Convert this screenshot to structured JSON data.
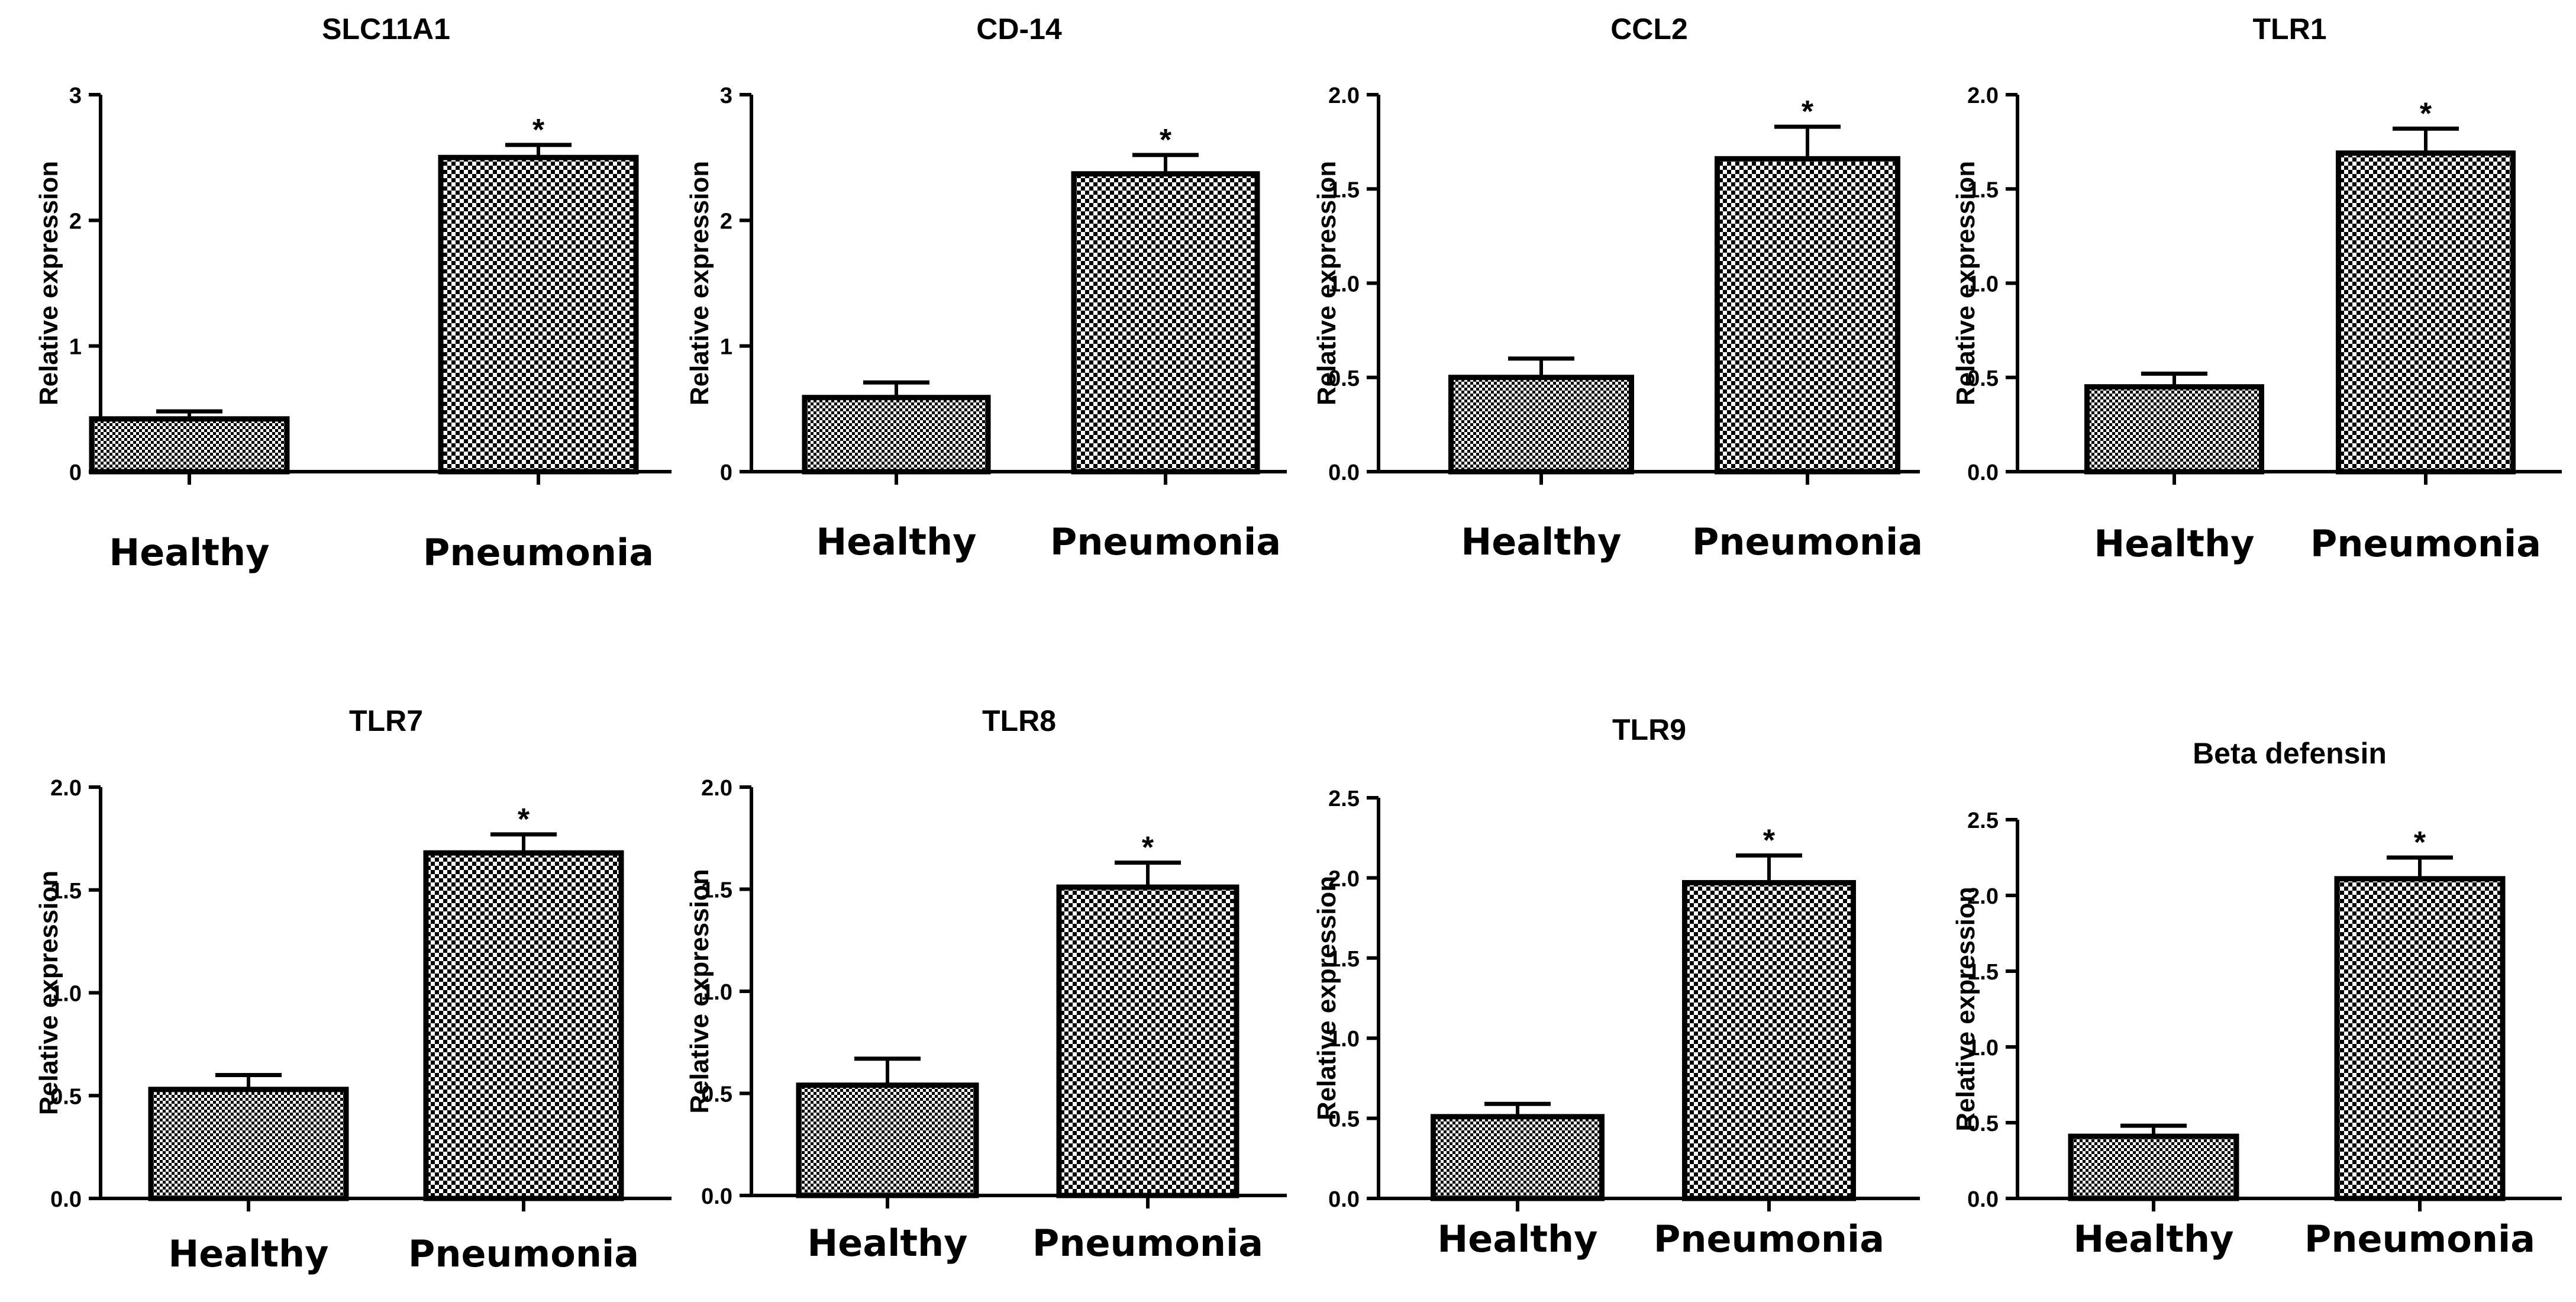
{
  "chart_data": [
    {
      "type": "bar",
      "title": "SLC11A1",
      "ylabel": "Relative expression",
      "xlabel": "",
      "categories": [
        "Healthy",
        "Pneumonia"
      ],
      "values": [
        0.42,
        2.5
      ],
      "errors": [
        0.06,
        0.1
      ],
      "ylim": [
        0,
        3
      ],
      "yticks": [
        "0",
        "1",
        "2",
        "3"
      ],
      "significance": [
        "",
        "*"
      ]
    },
    {
      "type": "bar",
      "title": "CD-14",
      "ylabel": "Relative expression",
      "xlabel": "",
      "categories": [
        "Healthy",
        "Pneumonia"
      ],
      "values": [
        0.59,
        2.37
      ],
      "errors": [
        0.12,
        0.15
      ],
      "ylim": [
        0,
        3
      ],
      "yticks": [
        "0",
        "1",
        "2",
        "3"
      ],
      "significance": [
        "",
        "*"
      ]
    },
    {
      "type": "bar",
      "title": "CCL2",
      "ylabel": "Relative expression",
      "xlabel": "",
      "categories": [
        "Healthy",
        "Pneumonia"
      ],
      "values": [
        0.5,
        1.66
      ],
      "errors": [
        0.1,
        0.17
      ],
      "ylim": [
        0,
        2
      ],
      "yticks": [
        "0.0",
        "0.5",
        "1.0",
        "1.5",
        "2.0"
      ],
      "significance": [
        "",
        "*"
      ]
    },
    {
      "type": "bar",
      "title": "TLR1",
      "ylabel": "Relative expression",
      "xlabel": "",
      "categories": [
        "Healthy",
        "Pneumonia"
      ],
      "values": [
        0.45,
        1.69
      ],
      "errors": [
        0.07,
        0.13
      ],
      "ylim": [
        0,
        2
      ],
      "yticks": [
        "0.0",
        "0.5",
        "1.0",
        "1.5",
        "2.0"
      ],
      "significance": [
        "",
        "*"
      ]
    },
    {
      "type": "bar",
      "title": "TLR7",
      "ylabel": "Relative expression",
      "xlabel": "",
      "categories": [
        "Healthy",
        "Pneumonia"
      ],
      "values": [
        0.53,
        1.68
      ],
      "errors": [
        0.07,
        0.09
      ],
      "ylim": [
        0,
        2
      ],
      "yticks": [
        "0.0",
        "0.5",
        "1.0",
        "1.5",
        "2.0"
      ],
      "significance": [
        "",
        "*"
      ]
    },
    {
      "type": "bar",
      "title": "TLR8",
      "ylabel": "Relative expression",
      "xlabel": "",
      "categories": [
        "Healthy",
        "Pneumonia"
      ],
      "values": [
        0.54,
        1.51
      ],
      "errors": [
        0.13,
        0.12
      ],
      "ylim": [
        0,
        2
      ],
      "yticks": [
        "0.0",
        "0.5",
        "1.0",
        "1.5",
        "2.0"
      ],
      "significance": [
        "",
        "*"
      ]
    },
    {
      "type": "bar",
      "title": "TLR9",
      "ylabel": "Relative expression",
      "xlabel": "",
      "categories": [
        "Healthy",
        "Pneumonia"
      ],
      "values": [
        0.51,
        1.97
      ],
      "errors": [
        0.08,
        0.17
      ],
      "ylim": [
        0,
        2.5
      ],
      "yticks": [
        "0.0",
        "0.5",
        "1.0",
        "1.5",
        "2.0",
        "2.5"
      ],
      "significance": [
        "",
        "*"
      ]
    },
    {
      "type": "bar",
      "title": "Beta defensin",
      "ylabel": "Relative expression",
      "xlabel": "",
      "categories": [
        "Healthy",
        "Pneumonia"
      ],
      "values": [
        0.41,
        2.11
      ],
      "errors": [
        0.07,
        0.14
      ],
      "ylim": [
        0,
        2.5
      ],
      "yticks": [
        "0.0",
        "0.5",
        "1.0",
        "1.5",
        "2.0",
        "2.5"
      ],
      "significance": [
        "",
        "*"
      ]
    }
  ],
  "colors": {
    "ink": "#000000",
    "background": "#ffffff"
  }
}
